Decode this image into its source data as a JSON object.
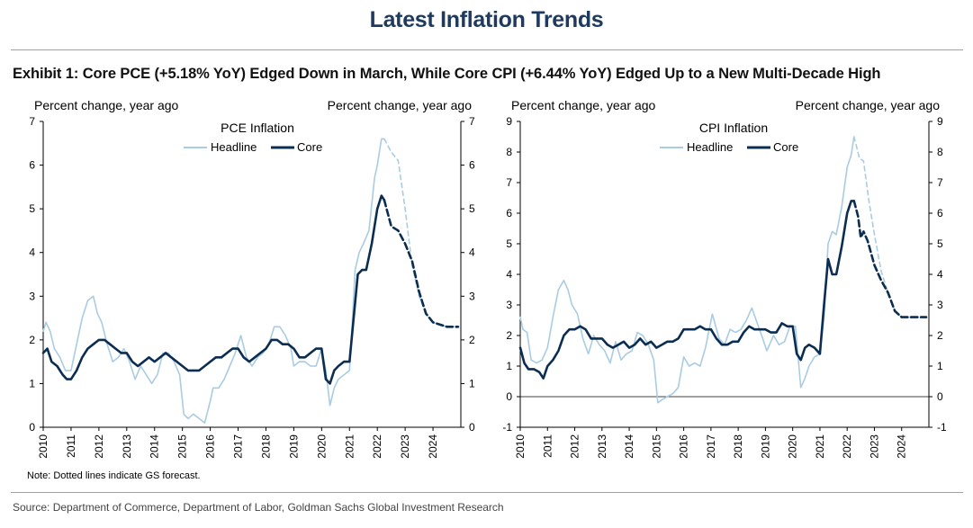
{
  "page_title": "Latest Inflation Trends",
  "exhibit_title": "Exhibit 1: Core PCE (+5.18% YoY) Edged Down in March, While Core CPI (+6.44% YoY) Edged Up to a New Multi-Decade High",
  "note": "Note: Dotted lines indicate GS forecast.",
  "source": "Source: Department of Commerce, Department of Labor, Goldman Sachs Global Investment Research",
  "colors": {
    "headline": "#a9cce3",
    "core": "#0b2d52",
    "title": "#1f3a5f"
  },
  "chart_data": [
    {
      "type": "line",
      "title": "PCE Inflation",
      "ylabel_left": "Percent change, year ago",
      "ylabel_right": "Percent change, year ago",
      "ylim": [
        0,
        7
      ],
      "yticks": [
        "0",
        "1",
        "2",
        "3",
        "4",
        "5",
        "6",
        "7"
      ],
      "xlim": [
        2010,
        2025
      ],
      "xticks": [
        "2010",
        "2011",
        "2012",
        "2013",
        "2014",
        "2015",
        "2016",
        "2017",
        "2018",
        "2019",
        "2020",
        "2021",
        "2022",
        "2023",
        "2024"
      ],
      "legend": [
        "Headline",
        "Core"
      ],
      "legend_position": "top-center",
      "series": [
        {
          "name": "Headline",
          "x": [
            2010.0,
            2010.1,
            2010.25,
            2010.4,
            2010.6,
            2010.8,
            2011.0,
            2011.2,
            2011.4,
            2011.6,
            2011.8,
            2011.95,
            2012.1,
            2012.3,
            2012.5,
            2012.7,
            2012.9,
            2013.1,
            2013.3,
            2013.5,
            2013.7,
            2013.9,
            2014.1,
            2014.3,
            2014.5,
            2014.7,
            2014.9,
            2015.05,
            2015.2,
            2015.4,
            2015.6,
            2015.8,
            2016.0,
            2016.1,
            2016.3,
            2016.5,
            2016.7,
            2016.9,
            2017.1,
            2017.3,
            2017.5,
            2017.7,
            2017.9,
            2018.1,
            2018.3,
            2018.5,
            2018.7,
            2018.9,
            2019.0,
            2019.2,
            2019.4,
            2019.6,
            2019.8,
            2020.0,
            2020.15,
            2020.3,
            2020.45,
            2020.6,
            2020.8,
            2021.0,
            2021.1,
            2021.2,
            2021.35,
            2021.5,
            2021.7,
            2021.9,
            2022.0,
            2022.15,
            2022.25
          ],
          "values": [
            2.2,
            2.4,
            2.2,
            1.8,
            1.6,
            1.3,
            1.3,
            1.9,
            2.5,
            2.9,
            3.0,
            2.6,
            2.4,
            1.9,
            1.5,
            1.6,
            1.8,
            1.5,
            1.1,
            1.4,
            1.2,
            1.0,
            1.2,
            1.7,
            1.7,
            1.5,
            1.2,
            0.3,
            0.2,
            0.3,
            0.2,
            0.1,
            0.6,
            0.9,
            0.9,
            1.1,
            1.4,
            1.7,
            2.1,
            1.6,
            1.4,
            1.6,
            1.7,
            1.9,
            2.3,
            2.3,
            2.1,
            1.8,
            1.4,
            1.5,
            1.5,
            1.4,
            1.4,
            1.8,
            1.3,
            0.5,
            0.9,
            1.1,
            1.2,
            1.3,
            2.4,
            3.6,
            4.0,
            4.2,
            4.5,
            5.7,
            6.0,
            6.6,
            6.6
          ]
        },
        {
          "name": "Headline forecast",
          "dashed": true,
          "x": [
            2022.25,
            2022.5,
            2022.75,
            2023.0,
            2023.25,
            2023.5,
            2023.75,
            2024.0,
            2024.5,
            2024.9
          ],
          "values": [
            6.6,
            6.3,
            6.1,
            5.0,
            3.7,
            3.0,
            2.6,
            2.4,
            2.3,
            2.3
          ]
        },
        {
          "name": "Core",
          "x": [
            2010.0,
            2010.15,
            2010.3,
            2010.5,
            2010.7,
            2010.85,
            2011.0,
            2011.2,
            2011.4,
            2011.6,
            2011.8,
            2012.0,
            2012.2,
            2012.4,
            2012.6,
            2012.8,
            2013.0,
            2013.2,
            2013.4,
            2013.6,
            2013.8,
            2014.0,
            2014.2,
            2014.4,
            2014.6,
            2014.8,
            2015.0,
            2015.2,
            2015.4,
            2015.6,
            2015.8,
            2016.0,
            2016.2,
            2016.4,
            2016.6,
            2016.8,
            2017.0,
            2017.2,
            2017.4,
            2017.6,
            2017.8,
            2018.0,
            2018.2,
            2018.4,
            2018.6,
            2018.8,
            2019.0,
            2019.2,
            2019.4,
            2019.6,
            2019.8,
            2020.0,
            2020.15,
            2020.3,
            2020.45,
            2020.6,
            2020.8,
            2021.0,
            2021.15,
            2021.3,
            2021.45,
            2021.6,
            2021.8,
            2022.0,
            2022.15,
            2022.25
          ],
          "values": [
            1.7,
            1.8,
            1.5,
            1.4,
            1.2,
            1.1,
            1.1,
            1.3,
            1.6,
            1.8,
            1.9,
            2.0,
            2.0,
            1.9,
            1.8,
            1.7,
            1.7,
            1.5,
            1.4,
            1.5,
            1.6,
            1.5,
            1.6,
            1.7,
            1.6,
            1.5,
            1.4,
            1.3,
            1.3,
            1.3,
            1.4,
            1.5,
            1.6,
            1.6,
            1.7,
            1.8,
            1.8,
            1.6,
            1.5,
            1.6,
            1.7,
            1.8,
            2.0,
            2.0,
            1.9,
            1.9,
            1.8,
            1.6,
            1.6,
            1.7,
            1.8,
            1.8,
            1.1,
            1.0,
            1.3,
            1.4,
            1.5,
            1.5,
            2.5,
            3.5,
            3.6,
            3.6,
            4.2,
            5.0,
            5.3,
            5.2
          ]
        },
        {
          "name": "Core forecast",
          "dashed": true,
          "x": [
            2022.25,
            2022.5,
            2022.75,
            2023.0,
            2023.25,
            2023.5,
            2023.75,
            2024.0,
            2024.5,
            2024.9
          ],
          "values": [
            5.2,
            4.6,
            4.5,
            4.2,
            3.8,
            3.1,
            2.6,
            2.4,
            2.3,
            2.3
          ]
        }
      ]
    },
    {
      "type": "line",
      "title": "CPI Inflation",
      "ylabel_left": "Percent change, year ago",
      "ylabel_right": "Percent change, year ago",
      "ylim": [
        -1,
        9
      ],
      "yticks": [
        "-1",
        "0",
        "1",
        "2",
        "3",
        "4",
        "5",
        "6",
        "7",
        "8",
        "9"
      ],
      "xlim": [
        2010,
        2025
      ],
      "xticks": [
        "2010",
        "2011",
        "2012",
        "2013",
        "2014",
        "2015",
        "2016",
        "2017",
        "2018",
        "2019",
        "2020",
        "2021",
        "2022",
        "2023",
        "2024"
      ],
      "legend": [
        "Headline",
        "Core"
      ],
      "legend_position": "top-center",
      "series": [
        {
          "name": "Headline",
          "x": [
            2010.0,
            2010.1,
            2010.25,
            2010.4,
            2010.6,
            2010.8,
            2011.0,
            2011.2,
            2011.4,
            2011.6,
            2011.75,
            2011.9,
            2012.1,
            2012.3,
            2012.5,
            2012.7,
            2012.9,
            2013.1,
            2013.3,
            2013.5,
            2013.7,
            2013.9,
            2014.1,
            2014.3,
            2014.5,
            2014.7,
            2014.9,
            2015.05,
            2015.2,
            2015.4,
            2015.6,
            2015.8,
            2016.0,
            2016.2,
            2016.4,
            2016.6,
            2016.8,
            2017.05,
            2017.3,
            2017.5,
            2017.7,
            2017.9,
            2018.1,
            2018.3,
            2018.5,
            2018.7,
            2018.9,
            2019.05,
            2019.3,
            2019.5,
            2019.7,
            2019.9,
            2020.1,
            2020.3,
            2020.45,
            2020.6,
            2020.8,
            2021.0,
            2021.15,
            2021.3,
            2021.45,
            2021.6,
            2021.8,
            2022.0,
            2022.15,
            2022.25
          ],
          "values": [
            2.6,
            2.2,
            2.1,
            1.2,
            1.1,
            1.2,
            1.6,
            2.6,
            3.5,
            3.8,
            3.5,
            3.0,
            2.7,
            1.9,
            1.4,
            2.0,
            1.7,
            1.5,
            1.1,
            1.8,
            1.2,
            1.4,
            1.5,
            2.1,
            2.0,
            1.7,
            1.2,
            -0.2,
            -0.1,
            0.0,
            0.1,
            0.3,
            1.3,
            1.0,
            1.1,
            1.0,
            1.6,
            2.7,
            1.9,
            1.7,
            2.2,
            2.1,
            2.2,
            2.5,
            2.9,
            2.4,
            1.9,
            1.5,
            2.0,
            1.7,
            1.8,
            2.3,
            2.3,
            0.3,
            0.6,
            1.0,
            1.3,
            1.4,
            2.6,
            5.0,
            5.4,
            5.3,
            6.2,
            7.5,
            7.9,
            8.5
          ]
        },
        {
          "name": "Headline forecast",
          "dashed": true,
          "x": [
            2022.25,
            2022.45,
            2022.6,
            2022.8,
            2023.0,
            2023.25,
            2023.5,
            2023.75,
            2024.0,
            2024.5,
            2024.9
          ],
          "values": [
            8.5,
            7.8,
            7.7,
            6.4,
            5.3,
            4.1,
            3.4,
            2.8,
            2.6,
            2.6,
            2.6
          ]
        },
        {
          "name": "Core",
          "x": [
            2010.0,
            2010.15,
            2010.3,
            2010.5,
            2010.7,
            2010.85,
            2011.0,
            2011.2,
            2011.4,
            2011.6,
            2011.8,
            2012.0,
            2012.2,
            2012.4,
            2012.6,
            2012.8,
            2013.0,
            2013.2,
            2013.4,
            2013.6,
            2013.8,
            2014.0,
            2014.2,
            2014.4,
            2014.6,
            2014.8,
            2015.0,
            2015.2,
            2015.4,
            2015.6,
            2015.8,
            2016.0,
            2016.2,
            2016.4,
            2016.6,
            2016.8,
            2017.0,
            2017.2,
            2017.4,
            2017.6,
            2017.8,
            2018.0,
            2018.2,
            2018.4,
            2018.6,
            2018.8,
            2019.0,
            2019.2,
            2019.4,
            2019.6,
            2019.8,
            2020.0,
            2020.15,
            2020.3,
            2020.45,
            2020.6,
            2020.8,
            2021.0,
            2021.15,
            2021.3,
            2021.45,
            2021.6,
            2021.8,
            2022.0,
            2022.15,
            2022.25
          ],
          "values": [
            1.6,
            1.1,
            0.9,
            0.9,
            0.8,
            0.6,
            1.0,
            1.2,
            1.5,
            2.0,
            2.2,
            2.2,
            2.3,
            2.2,
            1.9,
            1.9,
            1.9,
            1.7,
            1.6,
            1.7,
            1.8,
            1.6,
            1.7,
            1.9,
            1.7,
            1.8,
            1.6,
            1.7,
            1.8,
            1.8,
            1.9,
            2.2,
            2.2,
            2.2,
            2.3,
            2.2,
            2.2,
            1.9,
            1.7,
            1.7,
            1.8,
            1.8,
            2.1,
            2.3,
            2.2,
            2.2,
            2.2,
            2.1,
            2.1,
            2.4,
            2.3,
            2.3,
            1.4,
            1.2,
            1.6,
            1.7,
            1.6,
            1.4,
            3.0,
            4.5,
            4.0,
            4.0,
            4.9,
            6.0,
            6.4,
            6.4
          ]
        },
        {
          "name": "Core forecast",
          "dashed": true,
          "x": [
            2022.25,
            2022.4,
            2022.5,
            2022.6,
            2022.75,
            2023.0,
            2023.25,
            2023.5,
            2023.75,
            2024.0,
            2024.5,
            2024.9
          ],
          "values": [
            6.4,
            5.9,
            5.2,
            5.4,
            5.1,
            4.3,
            3.8,
            3.4,
            2.8,
            2.6,
            2.6,
            2.6
          ]
        }
      ]
    }
  ]
}
